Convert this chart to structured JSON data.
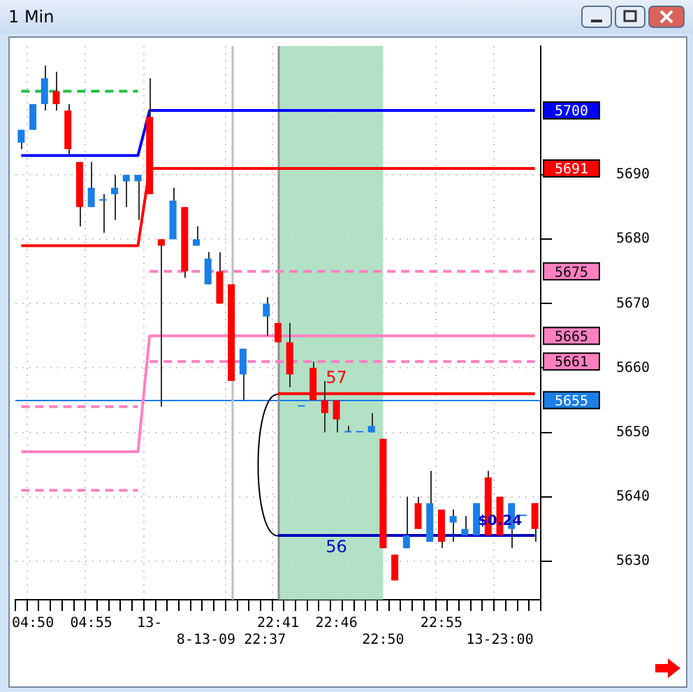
{
  "chart_data": {
    "type": "candlestick",
    "title": "1 Min",
    "categories": [
      null,
      "04:50",
      null,
      null,
      null,
      null,
      "04:55",
      null,
      null,
      null,
      null,
      "13-",
      null,
      null,
      null,
      null,
      null,
      null,
      "8-13-09 22:37",
      null,
      null,
      null,
      "22:41",
      null,
      null,
      null,
      null,
      "22:46",
      null,
      null,
      null,
      "22:50",
      null,
      null,
      null,
      null,
      "22:55",
      null,
      null,
      null,
      null,
      "13-23:00",
      null,
      null,
      null
    ],
    "ohlc": [
      [
        5695,
        5697,
        5694,
        5697
      ],
      [
        5697,
        5701,
        5697,
        5701
      ],
      [
        5701,
        5707,
        5700,
        5705
      ],
      [
        5703,
        5706,
        5700,
        5701
      ],
      [
        5700,
        5701,
        5693,
        5694
      ],
      [
        5692,
        5692,
        5682,
        5685
      ],
      [
        5685,
        5692,
        5685,
        5688
      ],
      [
        5686,
        5687,
        5681,
        5686
      ],
      [
        5687,
        5690,
        5683,
        5688
      ],
      [
        5689,
        5690,
        5685,
        5690
      ],
      [
        5689,
        5690,
        5683,
        5690
      ],
      [
        5699,
        5705,
        5687,
        5687
      ],
      [
        5680,
        5680,
        5654,
        5679
      ],
      [
        5680,
        5688,
        5680,
        5686
      ],
      [
        5685,
        5685,
        5674,
        5675
      ],
      [
        5679,
        5682,
        5679,
        5680
      ],
      [
        5673,
        5678,
        5673,
        5677
      ],
      [
        5675,
        5678,
        5670,
        5670
      ],
      [
        5673,
        5673,
        5658,
        5658
      ],
      [
        5659,
        5663,
        5655,
        5663
      ],
      null,
      [
        5668,
        5671,
        5665,
        5670
      ],
      [
        5667,
        5667,
        5664,
        5664
      ],
      [
        5664,
        5667,
        5657,
        5659
      ],
      [
        5654,
        5654,
        5654,
        5654
      ],
      [
        5660,
        5661,
        5655,
        5655
      ],
      [
        5655,
        5658,
        5650,
        5653
      ],
      [
        5655,
        5655,
        5650,
        5652
      ],
      [
        5650,
        5651,
        5650,
        5650
      ],
      [
        5650,
        5650,
        5650,
        5650
      ],
      [
        5650,
        5653,
        5650,
        5651
      ],
      [
        5649,
        5649,
        5632,
        5632
      ],
      [
        5631,
        5631,
        5627,
        5627
      ],
      [
        5632,
        5640,
        5632,
        5634
      ],
      [
        5639,
        5640,
        5635,
        5635
      ],
      [
        5633,
        5644,
        5633,
        5639
      ],
      [
        5638,
        5638,
        5632,
        5633
      ],
      [
        5636,
        5638,
        5633,
        5637
      ],
      [
        5634,
        5637,
        5634,
        5635
      ],
      [
        5634,
        5639,
        5634,
        5639
      ],
      [
        5643,
        5644,
        5634,
        5634
      ],
      [
        5640,
        5640,
        5634,
        5634
      ],
      [
        5635,
        5639,
        5632,
        5639
      ],
      [
        5637,
        5637,
        5637,
        5637
      ],
      [
        5639,
        5639,
        5633,
        5635
      ]
    ],
    "colors": [
      "#1a7ee8",
      "#1a7ee8",
      "#1a7ee8",
      "#ff0000",
      "#ff0000",
      "#ff0000",
      "#1a7ee8",
      "#1a7ee8",
      "#1a7ee8",
      "#1a7ee8",
      "#1a7ee8",
      "#ff0000",
      "#ff0000",
      "#1a7ee8",
      "#ff0000",
      "#1a7ee8",
      "#1a7ee8",
      "#ff0000",
      "#ff0000",
      "#1a7ee8",
      null,
      "#1a7ee8",
      "#ff0000",
      "#ff0000",
      "#1a7ee8",
      "#ff0000",
      "#ff0000",
      "#ff0000",
      "#1a7ee8",
      "#1a7ee8",
      "#1a7ee8",
      "#ff0000",
      "#ff0000",
      "#1a7ee8",
      "#ff0000",
      "#1a7ee8",
      "#ff0000",
      "#1a7ee8",
      "#1a7ee8",
      "#1a7ee8",
      "#ff0000",
      "#ff0000",
      "#1a7ee8",
      "#1a7ee8",
      "#ff0000"
    ],
    "series": [
      {
        "type": "line",
        "color": "#0000ff",
        "values": [
          5693,
          5693,
          5693,
          5693,
          5693,
          5693,
          5693,
          5693,
          5693,
          5693,
          5693,
          5700,
          5700,
          5700,
          5700,
          5700,
          5700,
          5700,
          5700,
          5700,
          5700,
          5700,
          5700,
          5700,
          5700,
          5700,
          5700,
          5700,
          5700,
          5700,
          5700,
          5700,
          5700,
          5700,
          5700,
          5700,
          5700,
          5700,
          5700,
          5700,
          5700,
          5700,
          5700,
          5700,
          5700
        ],
        "value_labels": [
          null,
          null,
          null,
          null,
          null,
          null,
          null,
          null,
          null,
          null,
          null,
          null,
          null,
          null,
          null,
          null,
          null,
          null,
          null,
          null,
          null,
          null,
          null,
          null,
          null,
          null,
          null,
          null,
          null,
          null,
          null,
          null,
          null,
          null,
          null,
          null,
          null,
          null,
          null,
          null,
          null,
          null,
          null,
          null,
          "5700"
        ]
      },
      {
        "type": "line",
        "color": "#ff0000",
        "values": [
          5679,
          5679,
          5679,
          5679,
          5679,
          5679,
          5679,
          5679,
          5679,
          5679,
          5679,
          5691,
          5691,
          5691,
          5691,
          5691,
          5691,
          5691,
          5691,
          5691,
          5691,
          5691,
          5691,
          5691,
          5691,
          5691,
          5691,
          5691,
          5691,
          5691,
          5691,
          5691,
          5691,
          5691,
          5691,
          5691,
          5691,
          5691,
          5691,
          5691,
          5691,
          5691,
          5691,
          5691,
          5691
        ],
        "value_labels": [
          null,
          null,
          null,
          null,
          null,
          null,
          null,
          null,
          null,
          null,
          null,
          null,
          null,
          null,
          null,
          null,
          null,
          null,
          null,
          null,
          null,
          null,
          null,
          null,
          null,
          null,
          null,
          null,
          null,
          null,
          null,
          null,
          null,
          null,
          null,
          null,
          null,
          null,
          null,
          null,
          null,
          null,
          null,
          null,
          "5691"
        ]
      },
      {
        "type": "line",
        "color": "#ff80c0",
        "values": [
          5647,
          5647,
          5647,
          5647,
          5647,
          5647,
          5647,
          5647,
          5647,
          5647,
          5647,
          5665,
          5665,
          5665,
          5665,
          5665,
          5665,
          5665,
          5665,
          5665,
          5665,
          5665,
          5665,
          5665,
          5665,
          5665,
          5665,
          5665,
          5665,
          5665,
          5665,
          5665,
          5665,
          5665,
          5665,
          5665,
          5665,
          5665,
          5665,
          5665,
          5665,
          5665,
          5665,
          5665,
          5665
        ],
        "value_labels": [
          null,
          null,
          null,
          null,
          null,
          null,
          null,
          null,
          null,
          null,
          null,
          null,
          null,
          null,
          null,
          null,
          null,
          null,
          null,
          null,
          null,
          null,
          null,
          null,
          null,
          null,
          null,
          null,
          null,
          null,
          null,
          null,
          null,
          null,
          null,
          null,
          null,
          null,
          null,
          null,
          null,
          null,
          null,
          null,
          "5665"
        ]
      },
      {
        "type": "line",
        "color": "#20c040",
        "line_style": "dashed",
        "values": [
          5703,
          5703,
          5703,
          5703,
          5703,
          5703,
          5703,
          5703,
          5703,
          5703,
          5703,
          null,
          null,
          null,
          null,
          null,
          null,
          null,
          null,
          null,
          null,
          null,
          null,
          null,
          null,
          null,
          null,
          null,
          null,
          null,
          null,
          null,
          null,
          null,
          null,
          null,
          null,
          null,
          null,
          null,
          null,
          null,
          null,
          null,
          null
        ]
      },
      {
        "type": "line",
        "color": "#ff80c0",
        "line_style": "dashed",
        "values": [
          null,
          null,
          null,
          null,
          null,
          null,
          null,
          null,
          null,
          null,
          null,
          5675,
          5675,
          5675,
          5675,
          5675,
          5675,
          5675,
          5675,
          5675,
          5675,
          5675,
          5675,
          5675,
          5675,
          5675,
          5675,
          5675,
          5675,
          5675,
          5675,
          5675,
          5675,
          5675,
          5675,
          5675,
          5675,
          5675,
          5675,
          5675,
          5675,
          5675,
          5675,
          5675,
          5675
        ],
        "value_labels": [
          null,
          null,
          null,
          null,
          null,
          null,
          null,
          null,
          null,
          null,
          null,
          null,
          null,
          null,
          null,
          null,
          null,
          null,
          null,
          null,
          null,
          null,
          null,
          null,
          null,
          null,
          null,
          null,
          null,
          null,
          null,
          null,
          null,
          null,
          null,
          null,
          null,
          null,
          null,
          null,
          null,
          null,
          null,
          null,
          "5675"
        ]
      },
      {
        "type": "line",
        "color": "#ff80c0",
        "line_style": "dashed",
        "values": [
          null,
          null,
          null,
          null,
          null,
          null,
          null,
          null,
          null,
          null,
          null,
          5661,
          5661,
          5661,
          5661,
          5661,
          5661,
          5661,
          5661,
          5661,
          5661,
          5661,
          5661,
          5661,
          5661,
          5661,
          5661,
          5661,
          5661,
          5661,
          5661,
          5661,
          5661,
          5661,
          5661,
          5661,
          5661,
          5661,
          5661,
          5661,
          5661,
          5661,
          5661,
          5661,
          5661
        ],
        "value_labels": [
          null,
          null,
          null,
          null,
          null,
          null,
          null,
          null,
          null,
          null,
          null,
          null,
          null,
          null,
          null,
          null,
          null,
          null,
          null,
          null,
          null,
          null,
          null,
          null,
          null,
          null,
          null,
          null,
          null,
          null,
          null,
          null,
          null,
          null,
          null,
          null,
          null,
          null,
          null,
          null,
          null,
          null,
          null,
          null,
          "5661"
        ]
      },
      {
        "type": "line",
        "color": "#ff80c0",
        "line_style": "dashed",
        "values": [
          5654,
          5654,
          5654,
          5654,
          5654,
          5654,
          5654,
          5654,
          5654,
          5654,
          5654,
          null,
          null,
          null,
          null,
          null,
          null,
          null,
          null,
          null,
          null,
          null,
          null,
          null,
          null,
          null,
          null,
          null,
          null,
          null,
          null,
          null,
          null,
          null,
          null,
          null,
          null,
          null,
          null,
          null,
          null,
          null,
          null,
          null,
          null
        ]
      },
      {
        "type": "line",
        "color": "#ff80c0",
        "line_style": "dashed",
        "values": [
          5641,
          5641,
          5641,
          5641,
          5641,
          5641,
          5641,
          5641,
          5641,
          5641,
          5641,
          null,
          null,
          null,
          null,
          null,
          null,
          null,
          null,
          null,
          null,
          null,
          null,
          null,
          null,
          null,
          null,
          null,
          null,
          null,
          null,
          null,
          null,
          null,
          null,
          null,
          null,
          null,
          null,
          null,
          null,
          null,
          null,
          null,
          null
        ]
      },
      {
        "type": "line",
        "color": "#ff0000",
        "values": [
          null,
          null,
          null,
          null,
          null,
          null,
          null,
          null,
          null,
          null,
          null,
          null,
          null,
          null,
          null,
          null,
          null,
          null,
          null,
          null,
          null,
          null,
          5656,
          5656,
          5656,
          5656,
          5656,
          5656,
          5656,
          5656,
          5656,
          5656,
          5656,
          5656,
          5656,
          5656,
          5656,
          5656,
          5656,
          5656,
          5656,
          5656,
          5656,
          5656,
          5656
        ]
      },
      {
        "type": "line",
        "color": "#0000c0",
        "values": [
          null,
          null,
          null,
          null,
          null,
          null,
          null,
          null,
          null,
          null,
          null,
          null,
          null,
          null,
          null,
          null,
          null,
          null,
          null,
          null,
          null,
          null,
          5634,
          5634,
          5634,
          5634,
          5634,
          5634,
          5634,
          5634,
          5634,
          5634,
          5634,
          5634,
          5634,
          5634,
          5634,
          5634,
          5634,
          5634,
          5634,
          5634,
          5634,
          5634,
          5634
        ]
      }
    ],
    "ylim": [
      5624,
      5710
    ],
    "yticks": [
      5630,
      5640,
      5650,
      5660,
      5670,
      5680,
      5690
    ],
    "grid": true,
    "ref_lines": [
      {
        "axis": "y",
        "value": 5655,
        "label": "5655",
        "color": "#1a7ee8"
      },
      {
        "axis": "x",
        "value": "8-13-09 22:37",
        "color": "#c0c0c0"
      },
      {
        "axis": "x",
        "value": "22:41",
        "color": "#909090"
      }
    ],
    "bands": [
      {
        "axis": "x",
        "from": "22:41",
        "to": "22:50",
        "color": "#9fd9b8"
      }
    ],
    "annotations": [
      {
        "text": "57",
        "x": "22:46",
        "y": 5656
      },
      {
        "text": "56",
        "x": "22:46",
        "y": 5634
      },
      {
        "text": "$0.24",
        "x": "13-23:00",
        "y": 5634
      }
    ]
  }
}
